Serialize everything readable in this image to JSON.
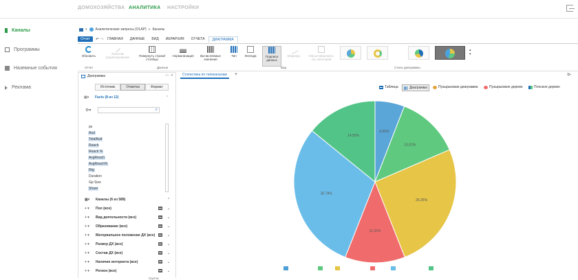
{
  "topnav": {
    "tabs": [
      {
        "label": "ДОМОХОЗЯЙСТВА",
        "active": false
      },
      {
        "label": "АНАЛИТИКА",
        "active": true
      },
      {
        "label": "НАСТРОЙКИ",
        "active": false
      }
    ]
  },
  "sidebar": {
    "items": [
      {
        "label": "Каналы",
        "icon": "bar-icon",
        "active": true
      },
      {
        "label": "Программы",
        "icon": "tv-icon",
        "active": false
      },
      {
        "label": "Наземные события",
        "icon": "events-icon",
        "active": false
      },
      {
        "label": "Реклама",
        "icon": "megaphone-icon",
        "active": false
      }
    ]
  },
  "breadcrumb": {
    "source": "Аналитические запросы (OLAP)",
    "sep": "»",
    "current": "Каналы"
  },
  "ribbon": {
    "report_btn": "Отчет",
    "tabs": [
      "ГЛАВНАЯ",
      "ДАННЫЕ",
      "ВИД",
      "ИЕРАРХИЯ",
      "ОТЧЕТА",
      "ДИАГРАММА"
    ],
    "active_tab": "ДИАГРАММА",
    "tools": {
      "refresh": "Обновить",
      "edit_notice": "Заказчик редактирование",
      "rotate": "Повернуть строки/столбцы",
      "normalize": "Нормализация",
      "calc": "Вычисляемые значения",
      "type": "Тип",
      "legend": "Легенда",
      "labels": "Подписи данных",
      "markers": "Маркеры",
      "scale": "Масштабировать ось категорий"
    },
    "groups": {
      "report": "Отчет",
      "data": "Данные",
      "view": "Вид",
      "style": "Стиль диаграммы"
    }
  },
  "panel": {
    "title": "Диаграмма",
    "segments": [
      "Источник",
      "Отметка",
      "Формат"
    ],
    "active_segment": "Отметка",
    "facts_header": "Facts (8 из 12)",
    "search_placeholder": "",
    "fields": [
      {
        "label": "рк",
        "sel": false
      },
      {
        "label": "Aud",
        "sel": true
      },
      {
        "label": "TotalAud",
        "sel": true
      },
      {
        "label": "Reach",
        "sel": true
      },
      {
        "label": "Reach %",
        "sel": true
      },
      {
        "label": "AvgReach",
        "sel": true
      },
      {
        "label": "AvgReach%",
        "sel": true
      },
      {
        "label": "Rtg",
        "sel": true
      },
      {
        "label": "Duration",
        "sel": false
      },
      {
        "label": "Gp Size",
        "sel": false
      },
      {
        "label": "Share",
        "sel": true
      }
    ],
    "dimensions": [
      {
        "label": "Каналы (6 из 589)"
      },
      {
        "label": "Пол (все)"
      },
      {
        "label": "Вид деятельности (все)"
      },
      {
        "label": "Образование (все)"
      },
      {
        "label": "Материальное положение ДХ (все)"
      },
      {
        "label": "Размер ДХ (все)"
      },
      {
        "label": "Состав ДХ (все)"
      },
      {
        "label": "Наличие интернета (все)"
      },
      {
        "label": "Регион (все)"
      }
    ],
    "footer": "Группы"
  },
  "viz": {
    "tab": "Статистика по телеканалам",
    "add": "+",
    "buttons": [
      {
        "label": "Таблица",
        "active": false
      },
      {
        "label": "Диаграмма",
        "active": true
      },
      {
        "label": "Пузырьковая диаграмма",
        "active": false
      },
      {
        "label": "Пузырьковое дерево",
        "active": false
      },
      {
        "label": "Плоское дерево",
        "active": false
      }
    ]
  },
  "chart_data": {
    "type": "pie",
    "slices": [
      {
        "value": 6.05,
        "label": "6.05%",
        "color": "#5aa6d8"
      },
      {
        "value": 13.01,
        "label": "13.01%",
        "color": "#5ec97f"
      },
      {
        "value": 26.26,
        "label": "26.26%",
        "color": "#e6c547"
      },
      {
        "value": 12.31,
        "label": "12.31%",
        "color": "#f06b6b"
      },
      {
        "value": 30.78,
        "label": "30.78%",
        "color": "#6bbde9"
      },
      {
        "value": 14.55,
        "label": "14.55%",
        "color": "#52c488"
      }
    ],
    "legend_colors": [
      "#4d9fd6",
      "#5ec97f",
      "#e6c547",
      "#f06b6b",
      "#6bbde9",
      "#52c488"
    ]
  }
}
